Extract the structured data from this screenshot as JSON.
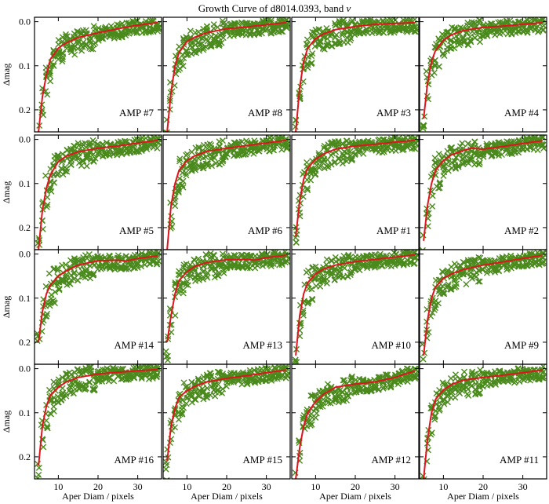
{
  "chart_data": {
    "type": "scatter",
    "title": "Growth Curve of d8014.0393, band v",
    "title_main": "Growth Curve of d8014.0393, band ",
    "title_band": "v",
    "xlabel": "Aper Diam / pixels",
    "ylabel": "Δmag",
    "xlim": [
      4,
      36
    ],
    "ylim": [
      0.25,
      -0.01
    ],
    "xticks": [
      10,
      20,
      30
    ],
    "yticks": [
      0.0,
      0.1,
      0.2
    ],
    "ytick_labels": [
      "0.0",
      "0.1",
      "0.2"
    ],
    "colors": {
      "points": "#4a8a1c",
      "curve": "#e0141e"
    },
    "panels": [
      {
        "label": "AMP #7",
        "curve": {
          "x": [
            5,
            6,
            7,
            8,
            10,
            12,
            15,
            20,
            25,
            30,
            35
          ],
          "y": [
            0.25,
            0.17,
            0.12,
            0.085,
            0.06,
            0.048,
            0.036,
            0.025,
            0.016,
            0.008,
            0.002
          ]
        }
      },
      {
        "label": "AMP #8",
        "curve": {
          "x": [
            5,
            6,
            7,
            8,
            10,
            12,
            15,
            20,
            25,
            30,
            35
          ],
          "y": [
            0.25,
            0.16,
            0.1,
            0.07,
            0.045,
            0.035,
            0.025,
            0.016,
            0.012,
            0.007,
            0.002
          ]
        }
      },
      {
        "label": "AMP #3",
        "curve": {
          "x": [
            5,
            6,
            7,
            8,
            10,
            12,
            15,
            20,
            25,
            30,
            35
          ],
          "y": [
            0.25,
            0.15,
            0.09,
            0.06,
            0.038,
            0.028,
            0.018,
            0.011,
            0.006,
            0.004,
            0.002
          ]
        }
      },
      {
        "label": "AMP #4",
        "curve": {
          "x": [
            5,
            6,
            7,
            8,
            10,
            12,
            15,
            20,
            25,
            30,
            35
          ],
          "y": [
            0.22,
            0.14,
            0.09,
            0.065,
            0.042,
            0.03,
            0.02,
            0.013,
            0.01,
            0.006,
            0.002
          ]
        }
      },
      {
        "label": "AMP #5",
        "curve": {
          "x": [
            5,
            6,
            7,
            8,
            10,
            12,
            15,
            20,
            25,
            30,
            35
          ],
          "y": [
            0.25,
            0.16,
            0.11,
            0.08,
            0.05,
            0.038,
            0.028,
            0.02,
            0.015,
            0.008,
            0.002
          ]
        }
      },
      {
        "label": "AMP #6",
        "curve": {
          "x": [
            5,
            6,
            7,
            8,
            10,
            12,
            15,
            20,
            25,
            30,
            35
          ],
          "y": [
            0.25,
            0.15,
            0.1,
            0.07,
            0.048,
            0.037,
            0.027,
            0.02,
            0.014,
            0.008,
            0.002
          ]
        }
      },
      {
        "label": "AMP #1",
        "curve": {
          "x": [
            5,
            6,
            7,
            8,
            10,
            12,
            15,
            20,
            25,
            30,
            35
          ],
          "y": [
            0.22,
            0.14,
            0.09,
            0.065,
            0.045,
            0.033,
            0.022,
            0.015,
            0.011,
            0.006,
            0.002
          ]
        }
      },
      {
        "label": "AMP #2",
        "curve": {
          "x": [
            5,
            6,
            7,
            8,
            10,
            12,
            15,
            17,
            20,
            25,
            30,
            35
          ],
          "y": [
            0.23,
            0.15,
            0.1,
            0.07,
            0.048,
            0.035,
            0.025,
            0.02,
            0.022,
            0.016,
            0.009,
            0.003
          ]
        }
      },
      {
        "label": "AMP #14",
        "curve": {
          "x": [
            5,
            6,
            7,
            8,
            10,
            12,
            15,
            20,
            25,
            27,
            30,
            35
          ],
          "y": [
            0.2,
            0.13,
            0.09,
            0.07,
            0.05,
            0.038,
            0.025,
            0.015,
            0.014,
            0.016,
            0.01,
            0.004
          ]
        }
      },
      {
        "label": "AMP #13",
        "curve": {
          "x": [
            5,
            6,
            7,
            8,
            10,
            12,
            15,
            20,
            25,
            27,
            30,
            35
          ],
          "y": [
            0.2,
            0.14,
            0.09,
            0.06,
            0.04,
            0.028,
            0.019,
            0.013,
            0.012,
            0.014,
            0.008,
            0.003
          ]
        }
      },
      {
        "label": "AMP #10",
        "curve": {
          "x": [
            5,
            6,
            7,
            8,
            10,
            12,
            15,
            20,
            25,
            30,
            35
          ],
          "y": [
            0.23,
            0.14,
            0.09,
            0.065,
            0.045,
            0.034,
            0.025,
            0.017,
            0.012,
            0.007,
            0.002
          ]
        }
      },
      {
        "label": "AMP #9",
        "curve": {
          "x": [
            5,
            6,
            7,
            8,
            10,
            12,
            15,
            20,
            25,
            30,
            35
          ],
          "y": [
            0.23,
            0.15,
            0.1,
            0.075,
            0.055,
            0.045,
            0.035,
            0.025,
            0.018,
            0.01,
            0.003
          ]
        }
      },
      {
        "label": "AMP #16",
        "curve": {
          "x": [
            5,
            6,
            7,
            8,
            10,
            12,
            15,
            20,
            25,
            30,
            35
          ],
          "y": [
            0.22,
            0.13,
            0.085,
            0.06,
            0.042,
            0.03,
            0.02,
            0.012,
            0.008,
            0.005,
            0.002
          ]
        }
      },
      {
        "label": "AMP #15",
        "curve": {
          "x": [
            5,
            6,
            7,
            8,
            10,
            12,
            15,
            20,
            25,
            30,
            35
          ],
          "y": [
            0.21,
            0.13,
            0.09,
            0.065,
            0.05,
            0.04,
            0.03,
            0.022,
            0.016,
            0.009,
            0.003
          ]
        }
      },
      {
        "label": "AMP #12",
        "curve": {
          "x": [
            5,
            6,
            7,
            8,
            10,
            12,
            15,
            20,
            25,
            30,
            35
          ],
          "y": [
            0.25,
            0.18,
            0.13,
            0.1,
            0.075,
            0.058,
            0.042,
            0.035,
            0.03,
            0.02,
            0.005
          ]
        }
      },
      {
        "label": "AMP #11",
        "curve": {
          "x": [
            5,
            6,
            7,
            8,
            10,
            12,
            15,
            20,
            25,
            30,
            35
          ],
          "y": [
            0.25,
            0.16,
            0.1,
            0.07,
            0.048,
            0.036,
            0.026,
            0.02,
            0.015,
            0.009,
            0.003
          ]
        }
      }
    ]
  }
}
